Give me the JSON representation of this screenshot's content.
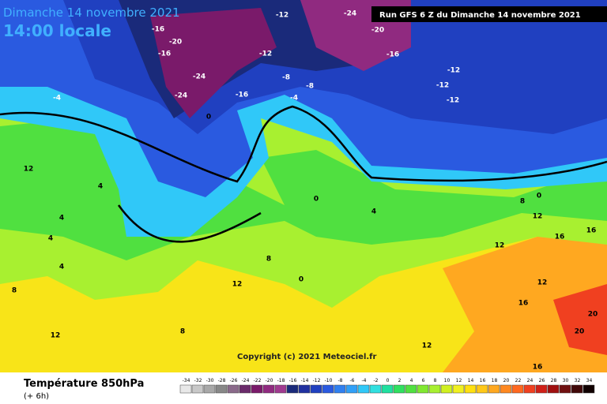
{
  "header": {
    "date": "Dimanche 14 novembre 2021",
    "time": "14:00 locale",
    "run": "Run GFS 6 Z du Dimanche 14 novembre 2021"
  },
  "copyright": "Copyright (c) 2021 Meteociel.fr",
  "footer": {
    "title": "Température 850hPa",
    "lead": "(+ 6h)"
  },
  "legend": {
    "values": [
      -34,
      -32,
      -30,
      -28,
      -26,
      -24,
      -22,
      -20,
      -18,
      -16,
      -14,
      -12,
      -10,
      -8,
      -6,
      -4,
      -2,
      0,
      2,
      4,
      6,
      8,
      10,
      12,
      14,
      16,
      18,
      20,
      22,
      24,
      26,
      28,
      30,
      32,
      34
    ],
    "colors": [
      "#e8e8e8",
      "#c8c8c8",
      "#a8a8a8",
      "#888888",
      "#8a6a8a",
      "#6a2a6a",
      "#7a1a6a",
      "#902a80",
      "#a03a90",
      "#1a2a7a",
      "#2030a0",
      "#2040c0",
      "#2a5ae0",
      "#3080f0",
      "#30a0f8",
      "#30c8f8",
      "#30e0e0",
      "#20e0a0",
      "#30e060",
      "#50e040",
      "#80e830",
      "#a8f030",
      "#d0f020",
      "#f0f020",
      "#ffe010",
      "#ffc818",
      "#ffa820",
      "#ff8820",
      "#ff6820",
      "#f04020",
      "#d02018",
      "#a01010",
      "#701010",
      "#400808",
      "#100000"
    ]
  },
  "map_labels": [
    -12,
    -16,
    -20,
    -16,
    -24,
    -24,
    -16,
    -12,
    -8,
    -8,
    -24,
    -20,
    -16,
    -12,
    -12,
    -12,
    -4,
    -4,
    0,
    12,
    4,
    4,
    4,
    4,
    8,
    12,
    8,
    0,
    4,
    8,
    12,
    16,
    16,
    12,
    12,
    16,
    20,
    20,
    16,
    12,
    8,
    12,
    0,
    0
  ]
}
